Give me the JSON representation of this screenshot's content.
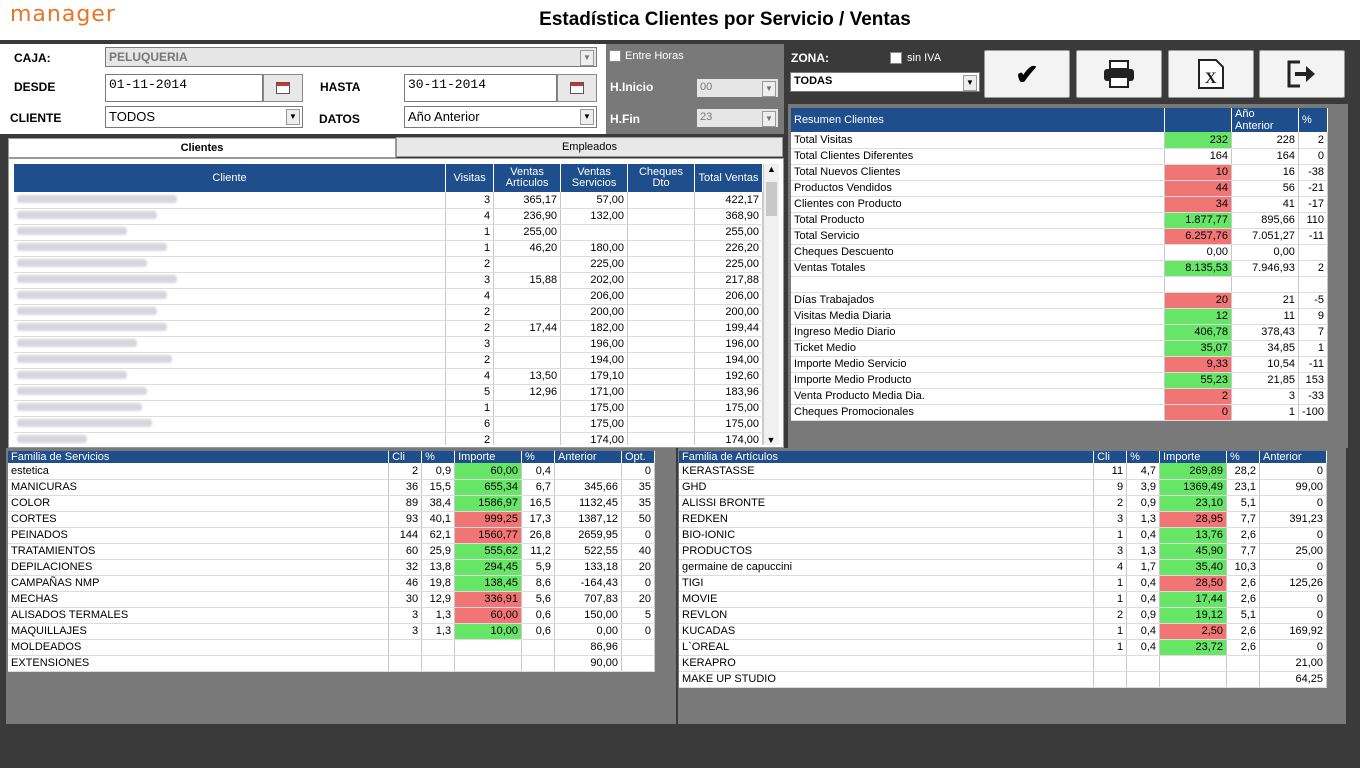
{
  "header": {
    "logo": "manager",
    "title": "Estadística Clientes por Servicio / Ventas"
  },
  "form": {
    "caja_label": "CAJA:",
    "caja_value": "PELUQUERIA",
    "desde_label": "DESDE",
    "desde_value": "01-11-2014",
    "hasta_label": "HASTA",
    "hasta_value": "30-11-2014",
    "cliente_label": "CLIENTE",
    "cliente_value": "TODOS",
    "datos_label": "DATOS",
    "datos_value": "Año Anterior"
  },
  "horas": {
    "entre_label": "Entre Horas",
    "inicio_label": "H.Inicio",
    "inicio_value": "00",
    "fin_label": "H.Fin",
    "fin_value": "23"
  },
  "zona": {
    "label": "ZONA:",
    "value": "TODAS",
    "siniva_label": "sin IVA"
  },
  "toolbar": {
    "confirm": "check-icon",
    "print": "printer-icon",
    "excel": "excel-icon",
    "exit": "exit-icon"
  },
  "tabs": {
    "clientes": "Clientes",
    "empleados": "Empleados"
  },
  "clientes_table": {
    "headers": [
      "Cliente",
      "Visitas",
      "Ventas Artículos",
      "Ventas Servicios",
      "Cheques Dto",
      "Total Ventas"
    ],
    "rows": [
      [
        "",
        "3",
        "365,17",
        "57,00",
        "",
        "422,17"
      ],
      [
        "",
        "4",
        "236,90",
        "132,00",
        "",
        "368,90"
      ],
      [
        "",
        "1",
        "255,00",
        "",
        "",
        "255,00"
      ],
      [
        "",
        "1",
        "46,20",
        "180,00",
        "",
        "226,20"
      ],
      [
        "",
        "2",
        "",
        "225,00",
        "",
        "225,00"
      ],
      [
        "",
        "3",
        "15,88",
        "202,00",
        "",
        "217,88"
      ],
      [
        "",
        "4",
        "",
        "206,00",
        "",
        "206,00"
      ],
      [
        "",
        "2",
        "",
        "200,00",
        "",
        "200,00"
      ],
      [
        "",
        "2",
        "17,44",
        "182,00",
        "",
        "199,44"
      ],
      [
        "",
        "3",
        "",
        "196,00",
        "",
        "196,00"
      ],
      [
        "",
        "2",
        "",
        "194,00",
        "",
        "194,00"
      ],
      [
        "",
        "4",
        "13,50",
        "179,10",
        "",
        "192,60"
      ],
      [
        "",
        "5",
        "12,96",
        "171,00",
        "",
        "183,96"
      ],
      [
        "",
        "1",
        "",
        "175,00",
        "",
        "175,00"
      ],
      [
        "",
        "6",
        "",
        "175,00",
        "",
        "175,00"
      ],
      [
        "",
        "2",
        "",
        "174,00",
        "",
        "174,00"
      ]
    ]
  },
  "resumen": {
    "headers": [
      "Resumen Clientes",
      "",
      "Año Anterior",
      "%"
    ],
    "rows": [
      {
        "label": "Total Visitas",
        "value": "232",
        "anterior": "228",
        "pct": "2",
        "color": "g"
      },
      {
        "label": "Total Clientes Diferentes",
        "value": "164",
        "anterior": "164",
        "pct": "0",
        "color": ""
      },
      {
        "label": "Total Nuevos Clientes",
        "value": "10",
        "anterior": "16",
        "pct": "-38",
        "color": "r"
      },
      {
        "label": "Productos Vendidos",
        "value": "44",
        "anterior": "56",
        "pct": "-21",
        "color": "r"
      },
      {
        "label": "Clientes con Producto",
        "value": "34",
        "anterior": "41",
        "pct": "-17",
        "color": "r"
      },
      {
        "label": "Total Producto",
        "value": "1.877,77",
        "anterior": "895,66",
        "pct": "110",
        "color": "g"
      },
      {
        "label": "Total Servicio",
        "value": "6.257,76",
        "anterior": "7.051,27",
        "pct": "-11",
        "color": "r"
      },
      {
        "label": "Cheques Descuento",
        "value": "0,00",
        "anterior": "0,00",
        "pct": "",
        "color": ""
      },
      {
        "label": "Ventas Totales",
        "value": "8.135,53",
        "anterior": "7.946,93",
        "pct": "2",
        "color": "g"
      },
      {
        "label": "",
        "value": "",
        "anterior": "",
        "pct": "",
        "color": ""
      },
      {
        "label": "Días Trabajados",
        "value": "20",
        "anterior": "21",
        "pct": "-5",
        "color": "r"
      },
      {
        "label": "Visitas Media Diaria",
        "value": "12",
        "anterior": "11",
        "pct": "9",
        "color": "g"
      },
      {
        "label": "Ingreso Medio Diario",
        "value": "406,78",
        "anterior": "378,43",
        "pct": "7",
        "color": "g"
      },
      {
        "label": "Ticket Medio",
        "value": "35,07",
        "anterior": "34,85",
        "pct": "1",
        "color": "g"
      },
      {
        "label": "Importe Medio Servicio",
        "value": "9,33",
        "anterior": "10,54",
        "pct": "-11",
        "color": "r"
      },
      {
        "label": "Importe Medio Producto",
        "value": "55,23",
        "anterior": "21,85",
        "pct": "153",
        "color": "g"
      },
      {
        "label": "Venta Producto Media Dia.",
        "value": "2",
        "anterior": "3",
        "pct": "-33",
        "color": "r"
      },
      {
        "label": "Cheques Promocionales",
        "value": "0",
        "anterior": "1",
        "pct": "-100",
        "color": "r"
      }
    ]
  },
  "servicios": {
    "headers": [
      "Familia de Servicios",
      "Cli",
      "%",
      "Importe",
      "%",
      "Anterior",
      "Opt."
    ],
    "rows": [
      {
        "c": [
          "estetica",
          "2",
          "0,9",
          "60,00",
          "0,4",
          "",
          "0"
        ],
        "color": "g"
      },
      {
        "c": [
          "MANICURAS",
          "36",
          "15,5",
          "655,34",
          "6,7",
          "345,66",
          "35"
        ],
        "color": "g"
      },
      {
        "c": [
          "COLOR",
          "89",
          "38,4",
          "1586,97",
          "16,5",
          "1132,45",
          "35"
        ],
        "color": "g"
      },
      {
        "c": [
          "CORTES",
          "93",
          "40,1",
          "999,25",
          "17,3",
          "1387,12",
          "50"
        ],
        "color": "r"
      },
      {
        "c": [
          "PEINADOS",
          "144",
          "62,1",
          "1560,77",
          "26,8",
          "2659,95",
          "0"
        ],
        "color": "r"
      },
      {
        "c": [
          "TRATAMIENTOS",
          "60",
          "25,9",
          "555,62",
          "11,2",
          "522,55",
          "40"
        ],
        "color": "g"
      },
      {
        "c": [
          "DEPILACIONES",
          "32",
          "13,8",
          "294,45",
          "5,9",
          "133,18",
          "20"
        ],
        "color": "g"
      },
      {
        "c": [
          "CAMPAÑAS NMP",
          "46",
          "19,8",
          "138,45",
          "8,6",
          "-164,43",
          "0"
        ],
        "color": "g"
      },
      {
        "c": [
          "MECHAS",
          "30",
          "12,9",
          "336,91",
          "5,6",
          "707,83",
          "20"
        ],
        "color": "r"
      },
      {
        "c": [
          "ALISADOS TERMALES",
          "3",
          "1,3",
          "60,00",
          "0,6",
          "150,00",
          "5"
        ],
        "color": "r"
      },
      {
        "c": [
          "MAQUILLAJES",
          "3",
          "1,3",
          "10,00",
          "0,6",
          "0,00",
          "0"
        ],
        "color": "g"
      },
      {
        "c": [
          "MOLDEADOS",
          "",
          "",
          "",
          "",
          "86,96",
          ""
        ],
        "color": ""
      },
      {
        "c": [
          "EXTENSIONES",
          "",
          "",
          "",
          "",
          "90,00",
          ""
        ],
        "color": ""
      }
    ]
  },
  "articulos": {
    "headers": [
      "Familia de Artículos",
      "Cli",
      "%",
      "Importe",
      "%",
      "Anterior"
    ],
    "rows": [
      {
        "c": [
          "KERASTASSE",
          "11",
          "4,7",
          "269,89",
          "28,2",
          "0"
        ],
        "color": "g"
      },
      {
        "c": [
          "GHD",
          "9",
          "3,9",
          "1369,49",
          "23,1",
          "99,00"
        ],
        "color": "g"
      },
      {
        "c": [
          "ALISSI BRONTE",
          "2",
          "0,9",
          "23,10",
          "5,1",
          "0"
        ],
        "color": "g"
      },
      {
        "c": [
          "REDKEN",
          "3",
          "1,3",
          "28,95",
          "7,7",
          "391,23"
        ],
        "color": "r"
      },
      {
        "c": [
          "BIO-IONIC",
          "1",
          "0,4",
          "13,76",
          "2,6",
          "0"
        ],
        "color": "g"
      },
      {
        "c": [
          "PRODUCTOS",
          "3",
          "1,3",
          "45,90",
          "7,7",
          "25,00"
        ],
        "color": "g"
      },
      {
        "c": [
          "germaine de capuccini",
          "4",
          "1,7",
          "35,40",
          "10,3",
          "0"
        ],
        "color": "g"
      },
      {
        "c": [
          "TIGI",
          "1",
          "0,4",
          "28,50",
          "2,6",
          "125,26"
        ],
        "color": "r"
      },
      {
        "c": [
          "MOVIE",
          "1",
          "0,4",
          "17,44",
          "2,6",
          "0"
        ],
        "color": "g"
      },
      {
        "c": [
          "REVLON",
          "2",
          "0,9",
          "19,12",
          "5,1",
          "0"
        ],
        "color": "g"
      },
      {
        "c": [
          "KUCADAS",
          "1",
          "0,4",
          "2,50",
          "2,6",
          "169,92"
        ],
        "color": "r"
      },
      {
        "c": [
          "L`OREAL",
          "1",
          "0,4",
          "23,72",
          "2,6",
          "0"
        ],
        "color": "g"
      },
      {
        "c": [
          "KERAPRO",
          "",
          "",
          "",
          "",
          "21,00"
        ],
        "color": ""
      },
      {
        "c": [
          "MAKE UP STUDIO",
          "",
          "",
          "",
          "",
          "64,25"
        ],
        "color": ""
      }
    ]
  }
}
